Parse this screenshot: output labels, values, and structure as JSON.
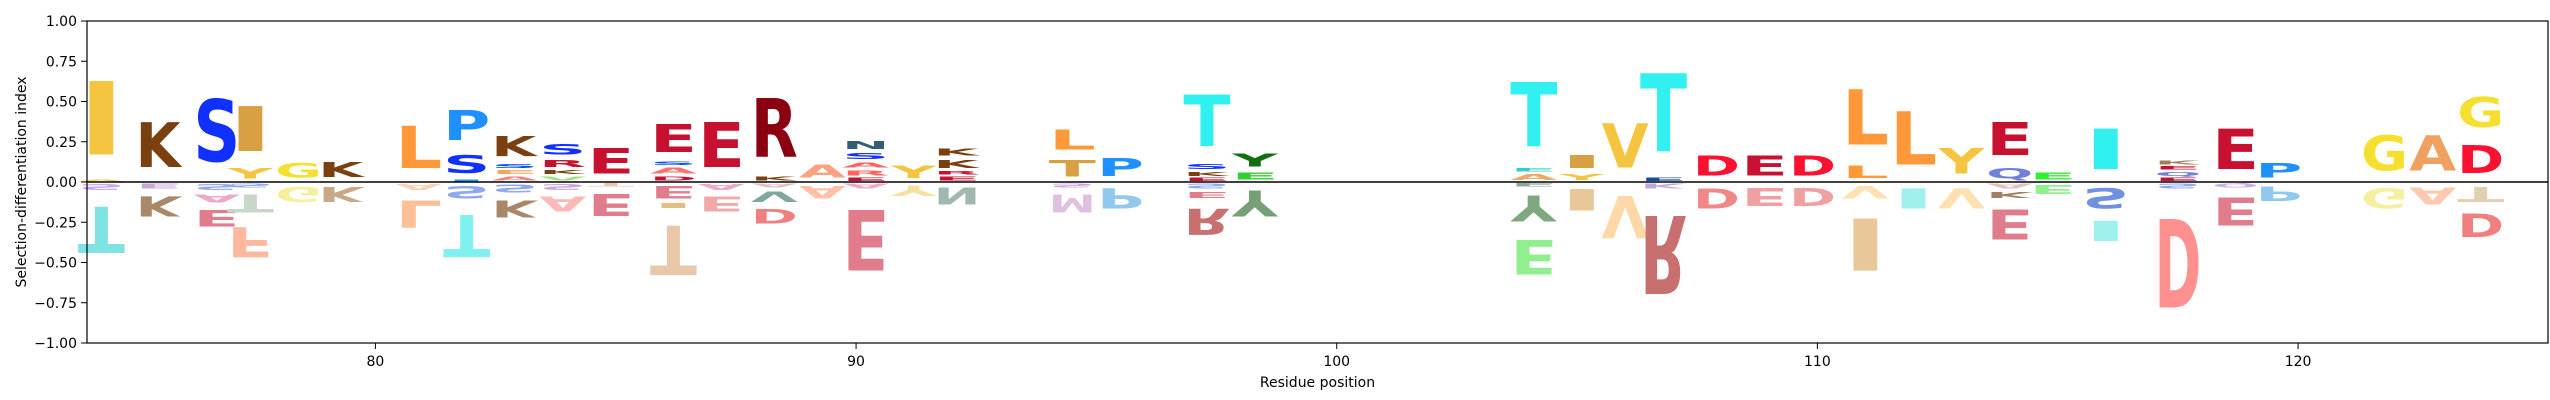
{
  "chart_data": {
    "type": "sequence-logo",
    "title": "",
    "xlabel": "Residue position",
    "ylabel": "Selection-differentiation index",
    "xlim": [
      74,
      125.2
    ],
    "ylim": [
      -1.0,
      1.0
    ],
    "xticks": [
      80,
      90,
      100,
      110,
      120
    ],
    "yticks": [
      1.0,
      0.75,
      0.5,
      0.25,
      0.0,
      -0.25,
      -0.5,
      -0.75,
      -1.0
    ],
    "ytick_labels": [
      "1.00",
      "0.75",
      "0.50",
      "0.25",
      "0.00",
      "−0.25",
      "−0.50",
      "−0.75",
      "−1.00"
    ],
    "zero_line": true,
    "grid": false,
    "positions": [
      {
        "x": 74.3,
        "pos": [
          [
            "A",
            "#f5c542",
            0.02
          ],
          [
            "I",
            "#f5c542",
            0.73
          ]
        ],
        "neg": [
          [
            "S",
            "#c5a8f0",
            0.06
          ],
          [
            "T",
            "#7fe3e3",
            0.46
          ]
        ]
      },
      {
        "x": 75.5,
        "pos": [
          [
            "K",
            "#7a4010",
            0.45
          ]
        ],
        "neg": [
          [
            "E",
            "#c8a8d8",
            0.05
          ],
          [
            "K",
            "#a88868",
            0.2
          ]
        ]
      },
      {
        "x": 76.7,
        "pos": [
          [
            "S",
            "#1030ff",
            0.62
          ]
        ],
        "neg": [
          [
            "S",
            "#90a8f0",
            0.06
          ],
          [
            "A",
            "#f0a8c8",
            0.08
          ],
          [
            "E",
            "#e07c8c",
            0.16
          ]
        ]
      },
      {
        "x": 77.4,
        "pos": [
          [
            "Y",
            "#f5c542",
            0.1
          ],
          [
            "I",
            "#d8a040",
            0.45
          ]
        ],
        "neg": [
          [
            "S",
            "#90a8f0",
            0.04
          ],
          [
            "T",
            "#c8d8c8",
            0.18
          ],
          [
            "F",
            "#ffb8a0",
            0.3
          ]
        ]
      },
      {
        "x": 78.4,
        "pos": [
          [
            "G",
            "#f5e030",
            0.14
          ]
        ],
        "neg": [
          [
            "G",
            "#f5f0a0",
            0.15
          ]
        ]
      },
      {
        "x": 79.3,
        "pos": [
          [
            "K",
            "#7a4010",
            0.15
          ]
        ],
        "neg": [
          [
            "K",
            "#c8a888",
            0.15
          ]
        ]
      },
      {
        "x": 80.9,
        "pos": [
          [
            "L",
            "#ff9838",
            0.42
          ]
        ],
        "neg": [
          [
            "A",
            "#ffd0b8",
            0.06
          ],
          [
            "L",
            "#ffc098",
            0.27
          ]
        ]
      },
      {
        "x": 81.9,
        "pos": [
          [
            "I",
            "#1e90ff",
            0.02
          ],
          [
            "S",
            "#1030ff",
            0.18
          ],
          [
            "P",
            "#1e90ff",
            0.3
          ]
        ],
        "neg": [
          [
            "S",
            "#90a8f0",
            0.12
          ],
          [
            "T",
            "#80f0f0",
            0.42
          ]
        ]
      },
      {
        "x": 82.9,
        "pos": [
          [
            "A",
            "#f08080",
            0.04
          ],
          [
            "E",
            "#f0a860",
            0.04
          ],
          [
            "S",
            "#0050ff",
            0.04
          ],
          [
            "K",
            "#7a4010",
            0.2
          ]
        ],
        "neg": [
          [
            "S",
            "#90a8f0",
            0.08
          ],
          [
            "K",
            "#a88868",
            0.17
          ]
        ]
      },
      {
        "x": 83.9,
        "pos": [
          [
            "V",
            "#a0e080",
            0.04
          ],
          [
            "K",
            "#7a4010",
            0.04
          ],
          [
            "R",
            "#c81030",
            0.07
          ],
          [
            "S",
            "#1030ff",
            0.1
          ]
        ],
        "neg": [
          [
            "S",
            "#c8a8d8",
            0.06
          ],
          [
            "A",
            "#ffb8b8",
            0.15
          ]
        ]
      },
      {
        "x": 84.9,
        "pos": [
          [
            "E",
            "#c81030",
            0.25
          ]
        ],
        "neg": [
          [
            "T",
            "#e8c8a8",
            0.03
          ],
          [
            "E",
            "#e07c8c",
            0.22
          ]
        ]
      },
      {
        "x": 86.2,
        "pos": [
          [
            "D",
            "#c81030",
            0.04
          ],
          [
            "A",
            "#ff7070",
            0.06
          ],
          [
            "S",
            "#0050ff",
            0.03
          ],
          [
            "E",
            "#c81030",
            0.28
          ]
        ],
        "neg": [
          [
            "E",
            "#e07c8c",
            0.12
          ],
          [
            "I",
            "#e0c080",
            0.05
          ],
          [
            "T",
            "#e8c8a8",
            0.49
          ]
        ]
      },
      {
        "x": 87.2,
        "pos": [
          [
            "E",
            "#c81030",
            0.45
          ]
        ],
        "neg": [
          [
            "A",
            "#f0a8c8",
            0.06
          ],
          [
            "E",
            "#f0a8a8",
            0.15
          ]
        ]
      },
      {
        "x": 88.3,
        "pos": [
          [
            "K",
            "#7a4010",
            0.04
          ],
          [
            "R",
            "#8a0010",
            0.58
          ]
        ],
        "neg": [
          [
            "A",
            "#e0c0c0",
            0.04
          ],
          [
            "V",
            "#80a8a0",
            0.1
          ],
          [
            "D",
            "#f08080",
            0.14
          ]
        ]
      },
      {
        "x": 89.3,
        "pos": [
          [
            "A",
            "#ffa080",
            0.13
          ]
        ],
        "neg": [
          [
            "A",
            "#ffc0a8",
            0.12
          ]
        ]
      },
      {
        "x": 90.2,
        "pos": [
          [
            "E",
            "#c81030",
            0.03
          ],
          [
            "R",
            "#ff6060",
            0.05
          ],
          [
            "A",
            "#ff6060",
            0.05
          ],
          [
            "S",
            "#1030ff",
            0.06
          ],
          [
            "N",
            "#306070",
            0.08
          ]
        ],
        "neg": [
          [
            "A",
            "#f0a8c8",
            0.05
          ],
          [
            "E",
            "#e07c8c",
            0.6
          ]
        ]
      },
      {
        "x": 91.2,
        "pos": [
          [
            "Y",
            "#f5c542",
            0.12
          ]
        ],
        "neg": [
          [
            "Y",
            "#f5e0a0",
            0.1
          ]
        ]
      },
      {
        "x": 92.1,
        "pos": [
          [
            "E",
            "#c81030",
            0.04
          ],
          [
            "R",
            "#c81030",
            0.03
          ],
          [
            "K",
            "#7a4010",
            0.08
          ],
          [
            "K",
            "#7a4010",
            0.07
          ]
        ],
        "neg": [
          [
            "N",
            "#a0b8b0",
            0.17
          ]
        ]
      },
      {
        "x": 94.5,
        "pos": [
          [
            "T",
            "#d8a040",
            0.16
          ],
          [
            "L",
            "#ff9838",
            0.2
          ]
        ],
        "neg": [
          [
            "S",
            "#c8a8d8",
            0.04
          ],
          [
            "M",
            "#e0c0e0",
            0.18
          ]
        ]
      },
      {
        "x": 95.5,
        "pos": [
          [
            "P",
            "#1e90ff",
            0.18
          ]
        ],
        "neg": [
          [
            "P",
            "#90c8f0",
            0.2
          ]
        ]
      },
      {
        "x": 97.3,
        "pos": [
          [
            "E",
            "#c81030",
            0.03
          ],
          [
            "K",
            "#7a4010",
            0.04
          ],
          [
            "S",
            "#1030ff",
            0.05
          ],
          [
            "T",
            "#30f0f0",
            0.51
          ]
        ],
        "neg": [
          [
            "S",
            "#90a8f0",
            0.05
          ],
          [
            "E",
            "#e07c8c",
            0.06
          ],
          [
            "R",
            "#c87070",
            0.26
          ]
        ]
      },
      {
        "x": 98.3,
        "pos": [
          [
            "E",
            "#30d030",
            0.07
          ],
          [
            "Y",
            "#107010",
            0.13
          ]
        ],
        "neg": [
          [
            "Y",
            "#78a078",
            0.26
          ]
        ]
      },
      {
        "x": 104.1,
        "pos": [
          [
            "A",
            "#f0a868",
            0.06
          ],
          [
            "E",
            "#30d0d0",
            0.03
          ],
          [
            "T",
            "#30f0f0",
            0.64
          ]
        ],
        "neg": [
          [
            "E",
            "#90a8a0",
            0.03
          ],
          [
            "Y",
            "#80a880",
            0.26
          ],
          [
            "E",
            "#90f090",
            0.34
          ]
        ]
      },
      {
        "x": 105.1,
        "pos": [
          [
            "Y",
            "#f5c542",
            0.06
          ],
          [
            "I",
            "#d8a040",
            0.13
          ]
        ],
        "neg": [
          [
            "I",
            "#e8c898",
            0.21
          ]
        ]
      },
      {
        "x": 106.0,
        "pos": [
          [
            "V",
            "#f5c542",
            0.44
          ]
        ],
        "neg": [
          [
            "V",
            "#ffd8a8",
            0.42
          ]
        ]
      },
      {
        "x": 106.8,
        "pos": [
          [
            "E",
            "#1050a0",
            0.03
          ],
          [
            "T",
            "#30f0f0",
            0.78
          ]
        ],
        "neg": [
          [
            "K",
            "#c0a8d8",
            0.05
          ],
          [
            "R",
            "#c87070",
            0.78
          ]
        ]
      },
      {
        "x": 107.9,
        "pos": [
          [
            "D",
            "#ff1030",
            0.2
          ]
        ],
        "neg": [
          [
            "D",
            "#f08888",
            0.2
          ]
        ]
      },
      {
        "x": 108.9,
        "pos": [
          [
            "E",
            "#c81030",
            0.2
          ]
        ],
        "neg": [
          [
            "E",
            "#f0a0a0",
            0.18
          ]
        ]
      },
      {
        "x": 109.9,
        "pos": [
          [
            "D",
            "#ff1030",
            0.2
          ]
        ],
        "neg": [
          [
            "D",
            "#f0a0a0",
            0.18
          ]
        ]
      },
      {
        "x": 111.0,
        "pos": [
          [
            "L",
            "#ff9838",
            0.12
          ],
          [
            "L",
            "#ff9838",
            0.55
          ]
        ],
        "neg": [
          [
            "V",
            "#ffe0b0",
            0.12
          ],
          [
            "I",
            "#e8c898",
            0.52
          ]
        ]
      },
      {
        "x": 112.0,
        "pos": [
          [
            "L",
            "#ff9838",
            0.53
          ]
        ],
        "neg": [
          [
            "I",
            "#a0f0f0",
            0.2
          ]
        ]
      },
      {
        "x": 113.0,
        "pos": [
          [
            "Y",
            "#f5c542",
            0.25
          ]
        ],
        "neg": [
          [
            "V",
            "#ffe0b0",
            0.2
          ]
        ]
      },
      {
        "x": 114.0,
        "pos": [
          [
            "Q",
            "#7080d8",
            0.1
          ],
          [
            "E",
            "#c81030",
            0.33
          ]
        ],
        "neg": [
          [
            "A",
            "#e0c0c0",
            0.05
          ],
          [
            "K",
            "#a08060",
            0.06
          ],
          [
            "E",
            "#e07c8c",
            0.3
          ]
        ]
      },
      {
        "x": 114.9,
        "pos": [
          [
            "E",
            "#30f030",
            0.07
          ]
        ],
        "neg": [
          [
            "E",
            "#90f090",
            0.09
          ]
        ]
      },
      {
        "x": 116.0,
        "pos": [
          [
            "I",
            "#30f0f0",
            0.4
          ]
        ],
        "neg": [
          [
            "S",
            "#7090e0",
            0.2
          ],
          [
            "I",
            "#a0f0f0",
            0.2
          ]
        ]
      },
      {
        "x": 117.5,
        "pos": [
          [
            "E",
            "#c81030",
            0.03
          ],
          [
            "Q",
            "#7080d8",
            0.04
          ],
          [
            "E",
            "#c81030",
            0.03
          ],
          [
            "K",
            "#a08060",
            0.04
          ]
        ],
        "neg": [
          [
            "S",
            "#90a8f0",
            0.05
          ],
          [
            "D",
            "#ff9090",
            0.88
          ]
        ]
      },
      {
        "x": 118.7,
        "pos": [
          [
            "E",
            "#c81030",
            0.4
          ]
        ],
        "neg": [
          [
            "Q",
            "#c8b0e8",
            0.04
          ],
          [
            "E",
            "#e07c8c",
            0.28
          ]
        ]
      },
      {
        "x": 119.6,
        "pos": [
          [
            "P",
            "#1e90ff",
            0.14
          ]
        ],
        "neg": [
          [
            "P",
            "#90c8f0",
            0.14
          ]
        ]
      },
      {
        "x": 121.8,
        "pos": [
          [
            "G",
            "#f5e030",
            0.35
          ]
        ],
        "neg": [
          [
            "G",
            "#f5f0a0",
            0.2
          ]
        ]
      },
      {
        "x": 122.8,
        "pos": [
          [
            "A",
            "#f0a060",
            0.35
          ]
        ],
        "neg": [
          [
            "A",
            "#ffc8b0",
            0.17
          ]
        ]
      },
      {
        "x": 123.8,
        "pos": [
          [
            "D",
            "#ff1030",
            0.28
          ],
          [
            "G",
            "#f5e030",
            0.3
          ]
        ],
        "neg": [
          [
            "T",
            "#e0d0b0",
            0.15
          ],
          [
            "D",
            "#f08080",
            0.23
          ]
        ]
      }
    ]
  }
}
